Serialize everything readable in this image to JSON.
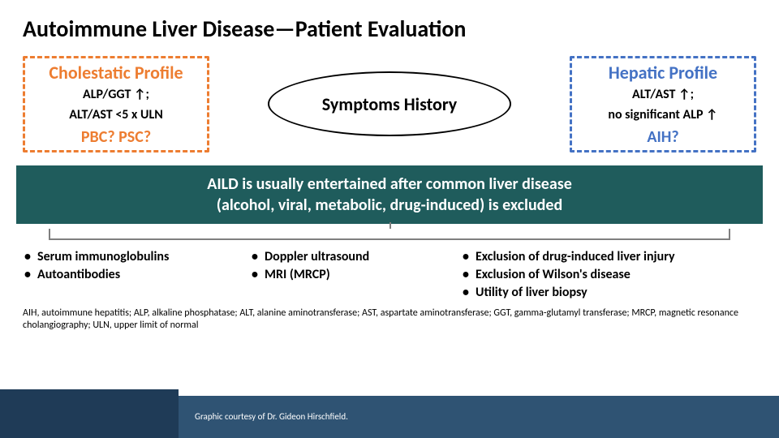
{
  "title": "Autoimmune Liver Disease—Patient Evaluation",
  "left_box": {
    "title": "Cholestatic Profile",
    "line1": "ALP/GGT ↑;",
    "line2": "ALT/AST <5 x ULN",
    "question": "PBC? PSC?",
    "border_color": "#ed7d31"
  },
  "center_oval": {
    "text": "Symptoms History"
  },
  "right_box": {
    "title": "Hepatic Profile",
    "line1": "ALT/AST ↑;",
    "line2": "no significant ALP ↑",
    "question": "AIH?",
    "border_color": "#4472c4"
  },
  "banner": {
    "line1": "AILD is usually entertained after common liver disease",
    "line2": "(alcohol, viral, metabolic, drug-induced) is excluded",
    "bg_color": "#1f5c5c"
  },
  "columns": {
    "col1": [
      "Serum immunoglobulins",
      "Autoantibodies"
    ],
    "col2": [
      "Doppler ultrasound",
      "MRI (MRCP)"
    ],
    "col3": [
      "Exclusion of drug-induced liver injury",
      "Exclusion of Wilson's disease",
      "Utility of liver biopsy"
    ]
  },
  "footnote": "AIH, autoimmune hepatitis; ALP, alkaline phosphatase; ALT, alanine aminotransferase; AST, aspartate aminotransferase; GGT, gamma-glutamyl transferase; MRCP, magnetic resonance cholangiography; ULN, upper limit of normal",
  "credit": "Graphic courtesy of Dr. Gideon Hirschfield.",
  "footer_colors": {
    "bar": "#2f5373",
    "box": "#1f3b57"
  }
}
